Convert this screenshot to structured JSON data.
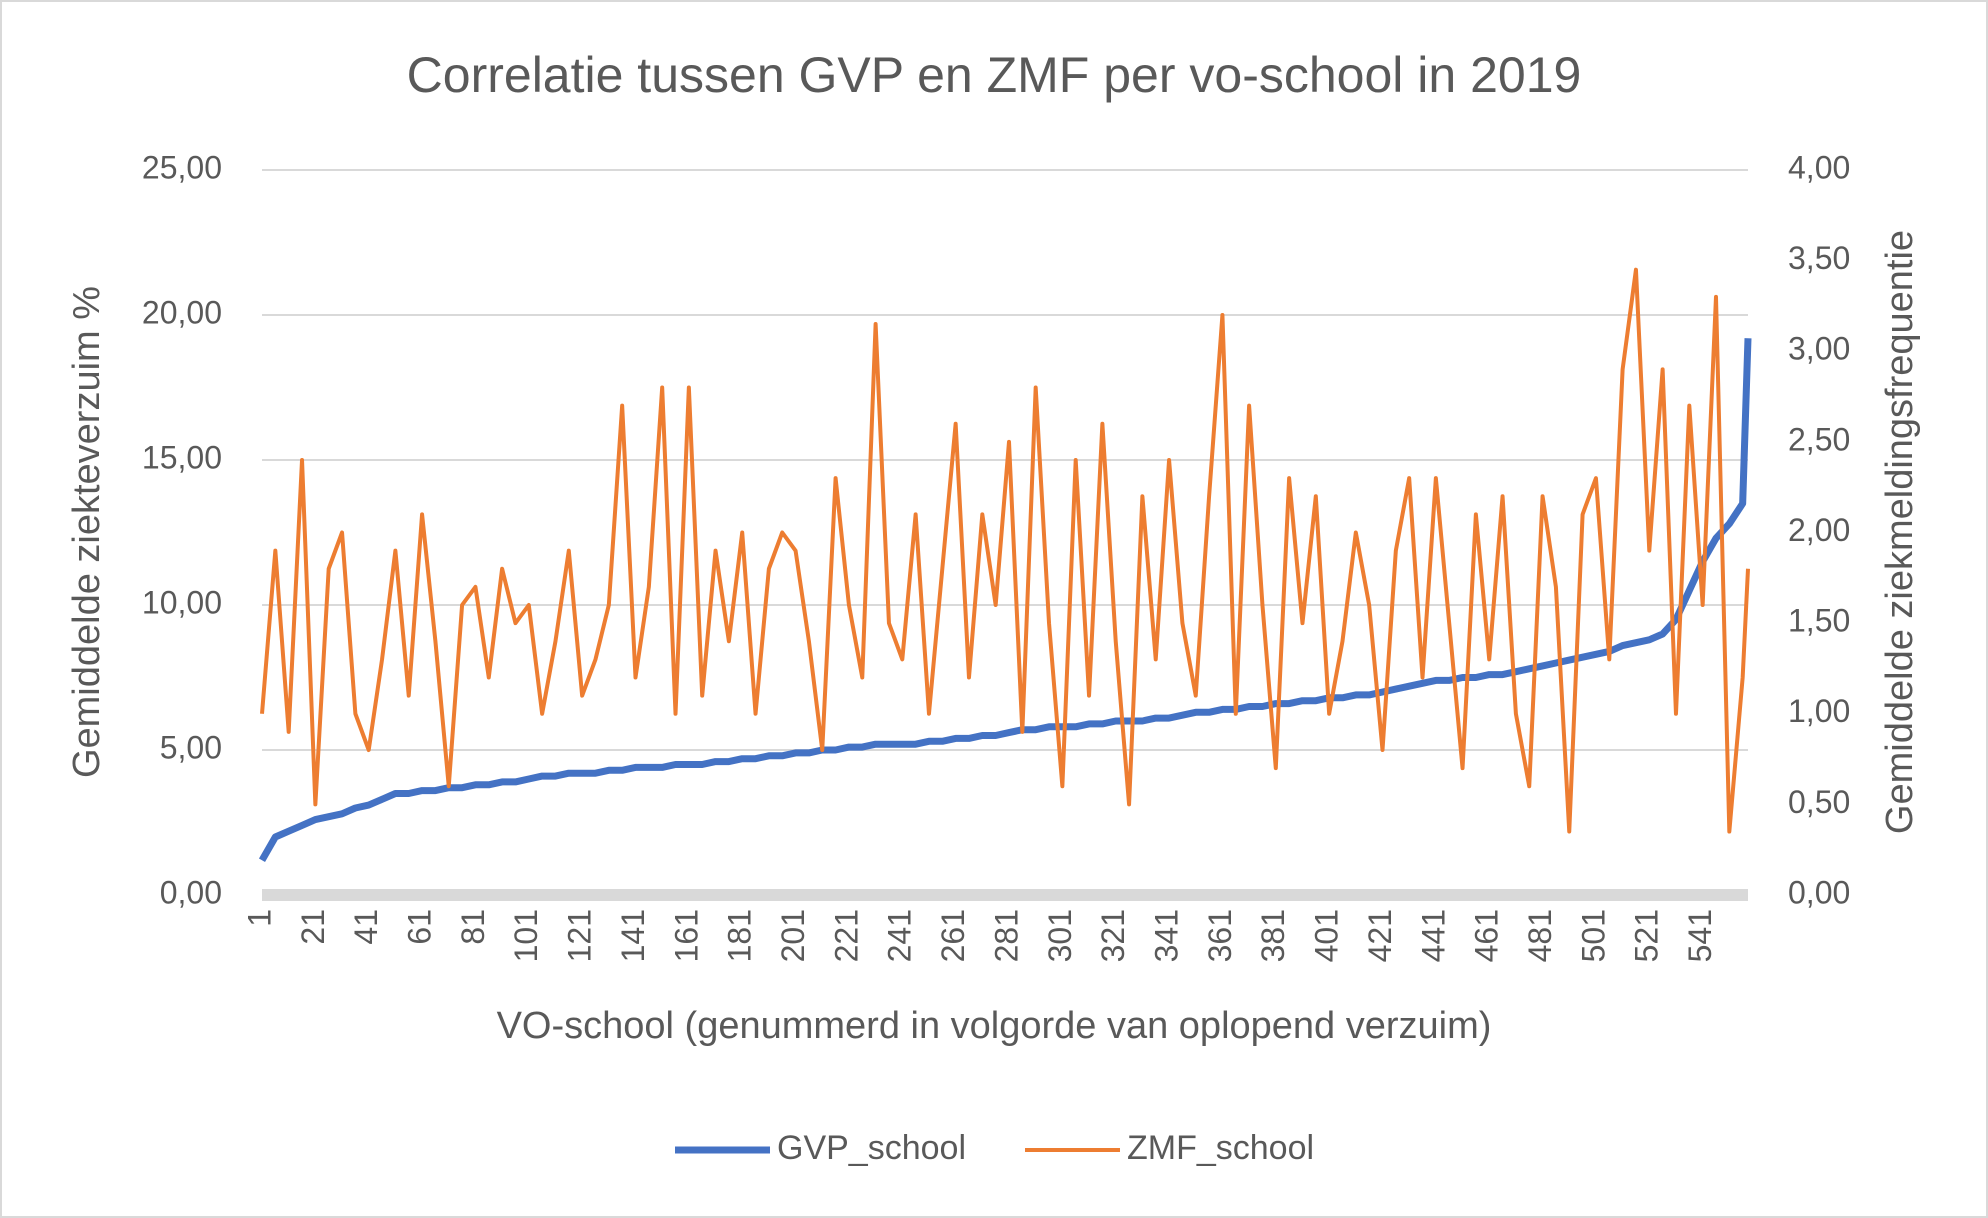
{
  "chart_data": {
    "type": "line",
    "title": "Correlatie tussen GVP en ZMF per vo-school in 2019",
    "xlabel": "VO-school (genummerd in volgorde van oplopend verzuim)",
    "ylabel": "Gemiddelde ziekteverzuim %",
    "y2label": "Gemiddelde ziekmeldingsfrequentie",
    "x": [
      1,
      6,
      11,
      16,
      21,
      26,
      31,
      36,
      41,
      46,
      51,
      56,
      61,
      66,
      71,
      76,
      81,
      86,
      91,
      96,
      101,
      106,
      111,
      116,
      121,
      126,
      131,
      136,
      141,
      146,
      151,
      156,
      161,
      166,
      171,
      176,
      181,
      186,
      191,
      196,
      201,
      206,
      211,
      216,
      221,
      226,
      231,
      236,
      241,
      246,
      251,
      256,
      261,
      266,
      271,
      276,
      281,
      286,
      291,
      296,
      301,
      306,
      311,
      316,
      321,
      326,
      331,
      336,
      341,
      346,
      351,
      356,
      361,
      366,
      371,
      376,
      381,
      386,
      391,
      396,
      401,
      406,
      411,
      416,
      421,
      426,
      431,
      436,
      441,
      446,
      451,
      456,
      461,
      466,
      471,
      476,
      481,
      486,
      491,
      496,
      501,
      506,
      511,
      516,
      521,
      526,
      531,
      536,
      541,
      546,
      551,
      556,
      558
    ],
    "xlim": [
      1,
      558
    ],
    "xticks": [
      1,
      21,
      41,
      61,
      81,
      101,
      121,
      141,
      161,
      181,
      201,
      221,
      241,
      261,
      281,
      301,
      321,
      341,
      361,
      381,
      401,
      421,
      441,
      461,
      481,
      501,
      521,
      541
    ],
    "ylim": [
      0,
      25
    ],
    "yticks": [
      {
        "value": 0,
        "label": "0,00"
      },
      {
        "value": 5,
        "label": "5,00"
      },
      {
        "value": 10,
        "label": "10,00"
      },
      {
        "value": 15,
        "label": "15,00"
      },
      {
        "value": 20,
        "label": "20,00"
      },
      {
        "value": 25,
        "label": "25,00"
      }
    ],
    "y2lim": [
      0,
      4
    ],
    "y2ticks": [
      {
        "value": 0,
        "label": "0,00"
      },
      {
        "value": 0.5,
        "label": "0,50"
      },
      {
        "value": 1,
        "label": "1,00"
      },
      {
        "value": 1.5,
        "label": "1,50"
      },
      {
        "value": 2,
        "label": "2,00"
      },
      {
        "value": 2.5,
        "label": "2,50"
      },
      {
        "value": 3,
        "label": "3,00"
      },
      {
        "value": 3.5,
        "label": "3,50"
      },
      {
        "value": 4,
        "label": "4,00"
      }
    ],
    "grid": true,
    "legend": "bottom",
    "series": [
      {
        "name": "GVP_school",
        "color": "#4472c4",
        "values": [
          1.2,
          2.0,
          2.2,
          2.4,
          2.6,
          2.7,
          2.8,
          3.0,
          3.1,
          3.3,
          3.5,
          3.5,
          3.6,
          3.6,
          3.7,
          3.7,
          3.8,
          3.8,
          3.9,
          3.9,
          4.0,
          4.1,
          4.1,
          4.2,
          4.2,
          4.2,
          4.3,
          4.3,
          4.4,
          4.4,
          4.4,
          4.5,
          4.5,
          4.5,
          4.6,
          4.6,
          4.7,
          4.7,
          4.8,
          4.8,
          4.9,
          4.9,
          5.0,
          5.0,
          5.1,
          5.1,
          5.2,
          5.2,
          5.2,
          5.2,
          5.3,
          5.3,
          5.4,
          5.4,
          5.5,
          5.5,
          5.6,
          5.7,
          5.7,
          5.8,
          5.8,
          5.8,
          5.9,
          5.9,
          6.0,
          6.0,
          6.0,
          6.1,
          6.1,
          6.2,
          6.3,
          6.3,
          6.4,
          6.4,
          6.5,
          6.5,
          6.6,
          6.6,
          6.7,
          6.7,
          6.8,
          6.8,
          6.9,
          6.9,
          7.0,
          7.1,
          7.2,
          7.3,
          7.4,
          7.4,
          7.5,
          7.5,
          7.6,
          7.6,
          7.7,
          7.8,
          7.9,
          8.0,
          8.1,
          8.2,
          8.3,
          8.4,
          8.6,
          8.7,
          8.8,
          9.0,
          9.5,
          10.5,
          11.5,
          12.3,
          12.8,
          13.5,
          19.2
        ]
      },
      {
        "name": "ZMF_school",
        "color": "#ed7d31",
        "axis": "y2",
        "values": [
          1.0,
          1.9,
          0.9,
          2.4,
          0.5,
          1.8,
          2.0,
          1.0,
          0.8,
          1.3,
          1.9,
          1.1,
          2.1,
          1.4,
          0.6,
          1.6,
          1.7,
          1.2,
          1.8,
          1.5,
          1.6,
          1.0,
          1.4,
          1.9,
          1.1,
          1.3,
          1.6,
          2.7,
          1.2,
          1.7,
          2.8,
          1.0,
          2.8,
          1.1,
          1.9,
          1.4,
          2.0,
          1.0,
          1.8,
          2.0,
          1.9,
          1.4,
          0.8,
          2.3,
          1.6,
          1.2,
          3.15,
          1.5,
          1.3,
          2.1,
          1.0,
          1.8,
          2.6,
          1.2,
          2.1,
          1.6,
          2.5,
          0.9,
          2.8,
          1.5,
          0.6,
          2.4,
          1.1,
          2.6,
          1.4,
          0.5,
          2.2,
          1.3,
          2.4,
          1.5,
          1.1,
          2.2,
          3.2,
          1.0,
          2.7,
          1.6,
          0.7,
          2.3,
          1.5,
          2.2,
          1.0,
          1.4,
          2.0,
          1.6,
          0.8,
          1.9,
          2.3,
          1.2,
          2.3,
          1.5,
          0.7,
          2.1,
          1.3,
          2.2,
          1.0,
          0.6,
          2.2,
          1.7,
          0.35,
          2.1,
          2.3,
          1.3,
          2.9,
          3.45,
          1.9,
          2.9,
          1.0,
          2.7,
          1.6,
          3.3,
          0.35,
          1.2,
          1.8
        ]
      }
    ]
  }
}
